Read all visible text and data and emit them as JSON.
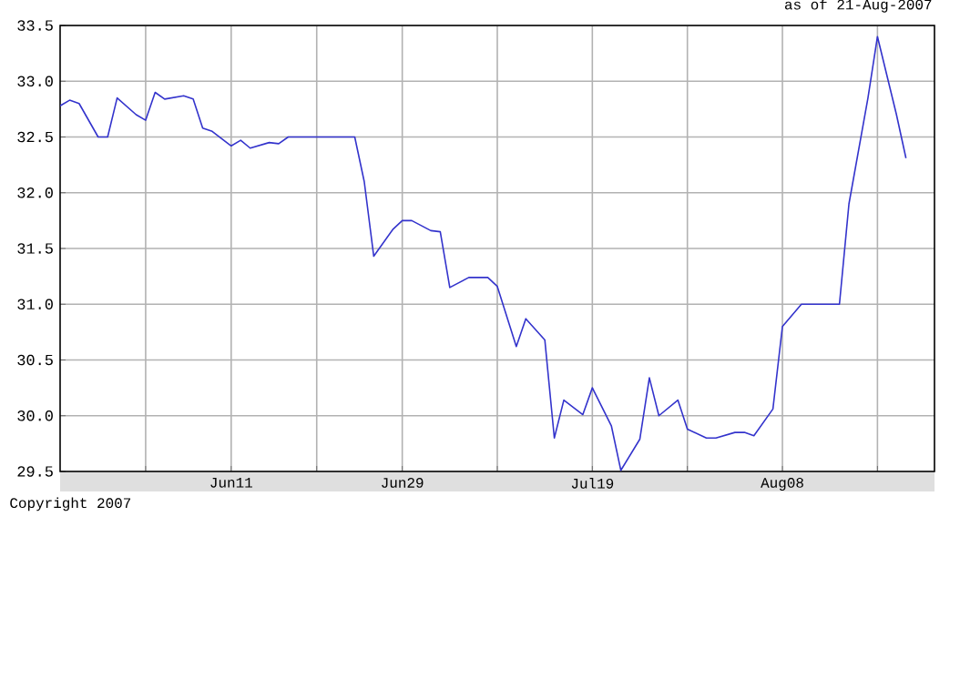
{
  "chart_data": {
    "type": "line",
    "title": "as of 21-Aug-2007",
    "annotations": [
      "Copyright 2007"
    ],
    "x": [
      "2007-05-24",
      "2007-05-25",
      "2007-05-26",
      "2007-05-28",
      "2007-05-29",
      "2007-05-30",
      "2007-06-01",
      "2007-06-02",
      "2007-06-03",
      "2007-06-04",
      "2007-06-06",
      "2007-06-07",
      "2007-06-08",
      "2007-06-09",
      "2007-06-11",
      "2007-06-12",
      "2007-06-13",
      "2007-06-15",
      "2007-06-16",
      "2007-06-17",
      "2007-06-20",
      "2007-06-24",
      "2007-06-25",
      "2007-06-26",
      "2007-06-28",
      "2007-06-29",
      "2007-06-30",
      "2007-07-02",
      "2007-07-03",
      "2007-07-04",
      "2007-07-06",
      "2007-07-08",
      "2007-07-09",
      "2007-07-11",
      "2007-07-12",
      "2007-07-14",
      "2007-07-15",
      "2007-07-16",
      "2007-07-18",
      "2007-07-19",
      "2007-07-21",
      "2007-07-22",
      "2007-07-24",
      "2007-07-25",
      "2007-07-26",
      "2007-07-28",
      "2007-07-29",
      "2007-07-31",
      "2007-08-01",
      "2007-08-03",
      "2007-08-04",
      "2007-08-05",
      "2007-08-07",
      "2007-08-08",
      "2007-08-10",
      "2007-08-12",
      "2007-08-14",
      "2007-08-15",
      "2007-08-17",
      "2007-08-18",
      "2007-08-20",
      "2007-08-21"
    ],
    "series": [
      {
        "color": "#3333cc",
        "values": [
          32.78,
          32.83,
          32.8,
          32.5,
          32.5,
          32.85,
          32.7,
          32.65,
          32.9,
          32.84,
          32.87,
          32.84,
          32.58,
          32.55,
          32.42,
          32.47,
          32.4,
          32.45,
          32.44,
          32.5,
          32.5,
          32.5,
          32.1,
          31.43,
          31.67,
          31.75,
          31.75,
          31.66,
          31.65,
          31.15,
          31.24,
          31.24,
          31.16,
          30.62,
          30.87,
          30.68,
          29.8,
          30.14,
          30.01,
          30.25,
          29.91,
          29.51,
          29.79,
          30.34,
          30.0,
          30.14,
          29.88,
          29.8,
          29.8,
          29.85,
          29.85,
          29.82,
          30.06,
          30.8,
          31.0,
          31.0,
          31.0,
          31.9,
          32.85,
          33.4,
          32.7,
          32.31
        ]
      }
    ],
    "xlim": [
      "2007-05-24",
      "2007-08-24"
    ],
    "xticks": [
      {
        "value": "2007-06-02",
        "label": null
      },
      {
        "value": "2007-06-11",
        "label": "Jun11"
      },
      {
        "value": "2007-06-20",
        "label": null
      },
      {
        "value": "2007-06-29",
        "label": "Jun29"
      },
      {
        "value": "2007-07-09",
        "label": null
      },
      {
        "value": "2007-07-19",
        "label": "Jul19"
      },
      {
        "value": "2007-07-29",
        "label": null
      },
      {
        "value": "2007-08-08",
        "label": "Aug08"
      },
      {
        "value": "2007-08-18",
        "label": null
      }
    ],
    "ylim": [
      29.5,
      33.5
    ],
    "yticks": [
      29.5,
      {
        "value": 30,
        "label": "30.0"
      },
      30.5,
      {
        "value": 31,
        "label": "31.0"
      },
      31.5,
      {
        "value": 32,
        "label": "32.0"
      },
      32.5,
      {
        "value": 33,
        "label": "33.0"
      },
      33.5
    ],
    "grid": true,
    "marker": "none",
    "line_style": "solid"
  }
}
